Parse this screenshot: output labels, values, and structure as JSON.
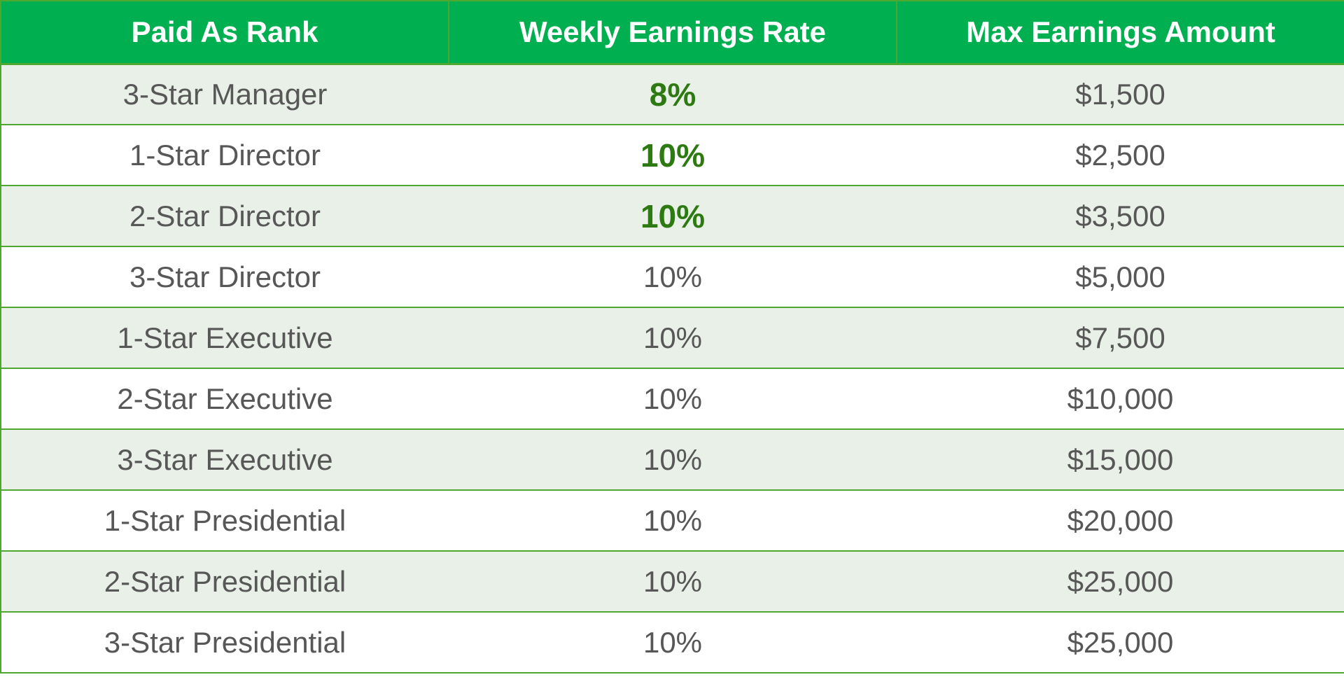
{
  "table": {
    "headers": [
      "Paid As Rank",
      "Weekly Earnings Rate",
      "Max Earnings Amount"
    ],
    "rows": [
      {
        "rank": "3-Star Manager",
        "rate": "8%",
        "max": "$1,500",
        "highlight": true
      },
      {
        "rank": "1-Star Director",
        "rate": "10%",
        "max": "$2,500",
        "highlight": true
      },
      {
        "rank": "2-Star Director",
        "rate": "10%",
        "max": "$3,500",
        "highlight": true
      },
      {
        "rank": "3-Star Director",
        "rate": "10%",
        "max": "$5,000",
        "highlight": false
      },
      {
        "rank": "1-Star Executive",
        "rate": "10%",
        "max": "$7,500",
        "highlight": false
      },
      {
        "rank": "2-Star Executive",
        "rate": "10%",
        "max": "$10,000",
        "highlight": false
      },
      {
        "rank": "3-Star Executive",
        "rate": "10%",
        "max": "$15,000",
        "highlight": false
      },
      {
        "rank": "1-Star Presidential",
        "rate": "10%",
        "max": "$20,000",
        "highlight": false
      },
      {
        "rank": "2-Star Presidential",
        "rate": "10%",
        "max": "$25,000",
        "highlight": false
      },
      {
        "rank": "3-Star Presidential",
        "rate": "10%",
        "max": "$25,000",
        "highlight": false
      }
    ]
  },
  "colors": {
    "header_bg": "#00b050",
    "border": "#4ea72e",
    "row_alt_bg": "#e9f0e8",
    "highlight_text": "#2e7a12",
    "body_text": "#575757"
  }
}
